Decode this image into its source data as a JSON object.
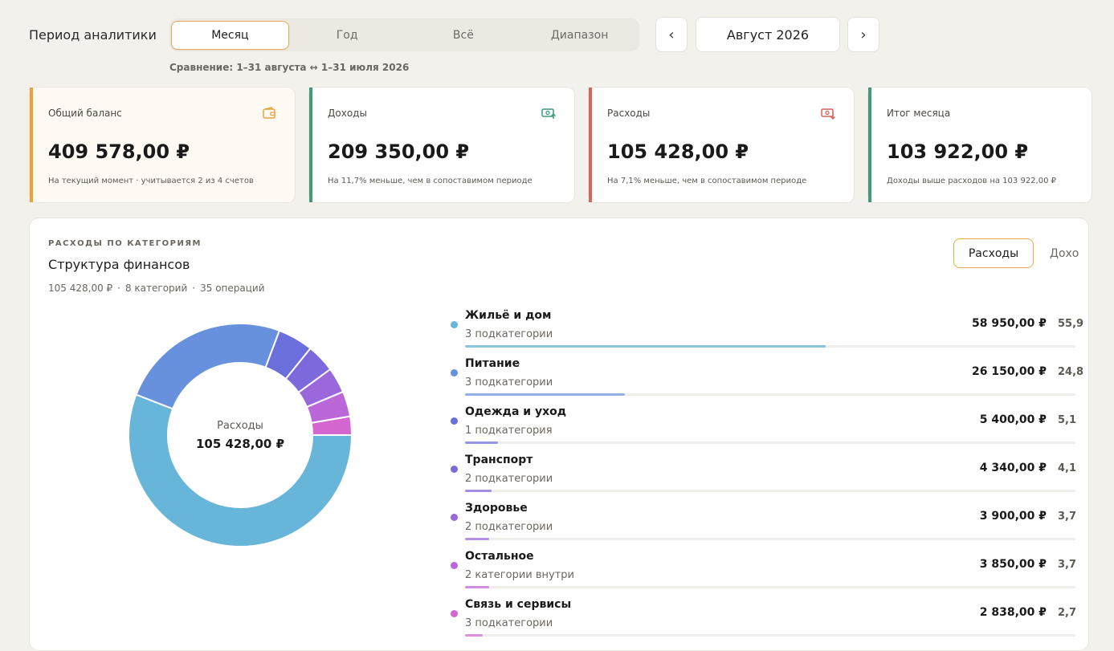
{
  "header": {
    "period_title": "Период аналитики",
    "tabs": [
      {
        "label": "Месяц",
        "active": true
      },
      {
        "label": "Год",
        "active": false
      },
      {
        "label": "Всё",
        "active": false
      },
      {
        "label": "Диапазон",
        "active": false
      }
    ],
    "prev_symbol": "‹",
    "next_symbol": "›",
    "current_month": "Август 2026",
    "comparison": "Сравнение: 1–31 августа ↔ 1–31 июля 2026"
  },
  "cards": [
    {
      "label": "Общий баланс",
      "value": "409 578,00 ₽",
      "note": "На текущий момент · учитывается 2 из 4 счетов",
      "accent": "#e8a33d",
      "icon": "wallet-icon",
      "bg": "#fffaf3"
    },
    {
      "label": "Доходы",
      "value": "209 350,00 ₽",
      "note": "На 11,7% меньше, чем в сопоставимом периоде",
      "accent": "#3f9b7a",
      "icon": "money-in-icon",
      "bg": "#ffffff"
    },
    {
      "label": "Расходы",
      "value": "105 428,00 ₽",
      "note": "На 7,1% меньше, чем в сопоставимом периоде",
      "accent": "#d4655a",
      "icon": "money-out-icon",
      "bg": "#ffffff"
    },
    {
      "label": "Итог месяца",
      "value": "103 922,00 ₽",
      "note": "Доходы выше расходов на 103 922,00 ₽",
      "accent": "#3f9b7a",
      "icon": "",
      "bg": "#ffffff"
    }
  ],
  "panel": {
    "kicker": "РАСХОДЫ ПО КАТЕГОРИЯМ",
    "title": "Структура финансов",
    "meta": [
      "105 428,00 ₽",
      "8 категорий",
      "35 операций"
    ],
    "meta_sep": "·",
    "toggle": [
      {
        "label": "Расходы",
        "active": true
      },
      {
        "label": "Дохо",
        "active": false
      }
    ],
    "donut_label": "Расходы",
    "donut_value": "105 428,00 ₽"
  },
  "chart_data": {
    "type": "pie",
    "total": 105428,
    "slices": [
      {
        "name": "Жильё и дом",
        "value": 58950,
        "color": "#67b5d9"
      },
      {
        "name": "Питание",
        "value": 26150,
        "color": "#6791dc"
      },
      {
        "name": "Одежда и уход",
        "value": 5400,
        "color": "#6b6fdb"
      },
      {
        "name": "Транспорт",
        "value": 4340,
        "color": "#7d68dc"
      },
      {
        "name": "Здоровье",
        "value": 3900,
        "color": "#9b68dc"
      },
      {
        "name": "Остальное",
        "value": 3850,
        "color": "#bb66d9"
      },
      {
        "name": "Связь и сервисы",
        "value": 2838,
        "color": "#d466cf"
      }
    ]
  },
  "categories": [
    {
      "name": "Жильё и дом",
      "sub": "3 подкатегории",
      "amount": "58 950,00 ₽",
      "pct": "55,9",
      "share": 0.559,
      "color": "#67b5d9",
      "bar": "#8dc4dd"
    },
    {
      "name": "Питание",
      "sub": "3 подкатегории",
      "amount": "26 150,00 ₽",
      "pct": "24,8",
      "share": 0.248,
      "color": "#6791dc",
      "bar": "#93aee4"
    },
    {
      "name": "Одежда и уход",
      "sub": "1 подкатегория",
      "amount": "5 400,00 ₽",
      "pct": "5,1",
      "share": 0.051,
      "color": "#6b6fdb",
      "bar": "#9496e3"
    },
    {
      "name": "Транспорт",
      "sub": "2 подкатегории",
      "amount": "4 340,00 ₽",
      "pct": "4,1",
      "share": 0.041,
      "color": "#7d68dc",
      "bar": "#a48ee4"
    },
    {
      "name": "Здоровье",
      "sub": "2 подкатегории",
      "amount": "3 900,00 ₽",
      "pct": "3,7",
      "share": 0.037,
      "color": "#9b68dc",
      "bar": "#b790e4"
    },
    {
      "name": "Остальное",
      "sub": "2 категории внутри",
      "amount": "3 850,00 ₽",
      "pct": "3,7",
      "share": 0.037,
      "color": "#bb66d9",
      "bar": "#cf8ee2"
    },
    {
      "name": "Связь и сервисы",
      "sub": "3 подкатегории",
      "amount": "2 838,00 ₽",
      "pct": "2,7",
      "share": 0.027,
      "color": "#d466cf",
      "bar": "#e08fdc"
    }
  ]
}
